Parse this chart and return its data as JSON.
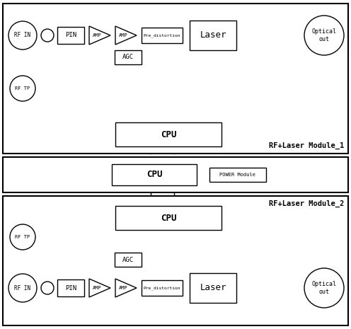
{
  "bg_color": "#ffffff",
  "line_color": "#000000",
  "module1_label": "RF+Laser Module_1",
  "module2_label": "RF+Laser Module_2",
  "power_module_label": "POWER Module"
}
